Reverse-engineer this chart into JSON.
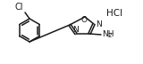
{
  "bg_color": "#ffffff",
  "line_color": "#1a1a1a",
  "line_width": 1.1,
  "Cl_label": "Cl",
  "N_label": "N",
  "O_label": "O",
  "NH_label": "NH",
  "sub2": "2",
  "HCl_label": "HCl"
}
